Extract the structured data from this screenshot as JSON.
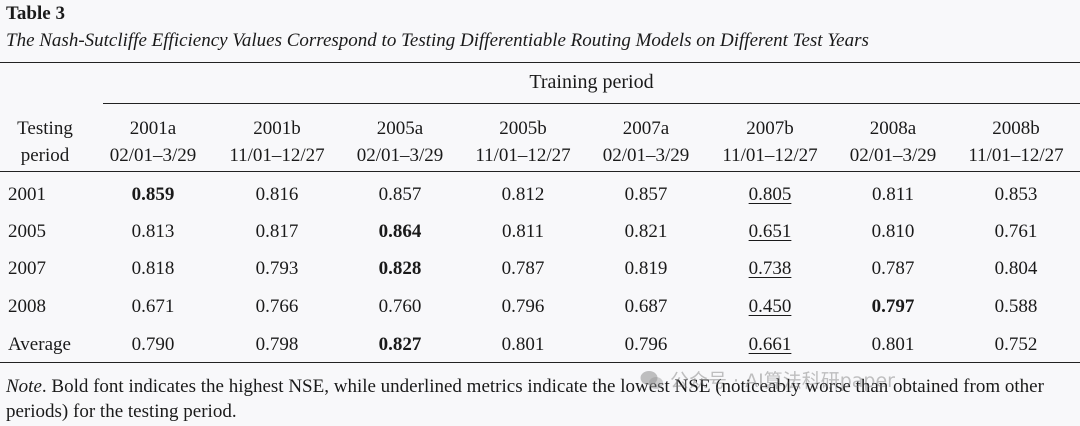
{
  "table_label": "Table 3",
  "caption": "The Nash-Sutcliffe Efficiency Values Correspond to Testing Differentiable Routing Models on Different Test Years",
  "group_header": "Training period",
  "row_header": {
    "line1": "Testing",
    "line2": "period"
  },
  "columns": [
    {
      "name": "2001a",
      "range": "02/01–3/29"
    },
    {
      "name": "2001b",
      "range": "11/01–12/27"
    },
    {
      "name": "2005a",
      "range": "02/01–3/29"
    },
    {
      "name": "2005b",
      "range": "11/01–12/27"
    },
    {
      "name": "2007a",
      "range": "02/01–3/29"
    },
    {
      "name": "2007b",
      "range": "11/01–12/27"
    },
    {
      "name": "2008a",
      "range": "02/01–3/29"
    },
    {
      "name": "2008b",
      "range": "11/01–12/27"
    }
  ],
  "rows": [
    {
      "label": "2001",
      "values": [
        "0.859",
        "0.816",
        "0.857",
        "0.812",
        "0.857",
        "0.805",
        "0.811",
        "0.853"
      ],
      "bold": [
        0
      ],
      "underline": [
        5
      ]
    },
    {
      "label": "2005",
      "values": [
        "0.813",
        "0.817",
        "0.864",
        "0.811",
        "0.821",
        "0.651",
        "0.810",
        "0.761"
      ],
      "bold": [
        2
      ],
      "underline": [
        5
      ]
    },
    {
      "label": "2007",
      "values": [
        "0.818",
        "0.793",
        "0.828",
        "0.787",
        "0.819",
        "0.738",
        "0.787",
        "0.804"
      ],
      "bold": [
        2
      ],
      "underline": [
        5
      ]
    },
    {
      "label": "2008",
      "values": [
        "0.671",
        "0.766",
        "0.760",
        "0.796",
        "0.687",
        "0.450",
        "0.797",
        "0.588"
      ],
      "bold": [
        6
      ],
      "underline": [
        5
      ]
    },
    {
      "label": "Average",
      "values": [
        "0.790",
        "0.798",
        "0.827",
        "0.801",
        "0.796",
        "0.661",
        "0.801",
        "0.752"
      ],
      "bold": [
        2
      ],
      "underline": [
        5
      ]
    }
  ],
  "note": {
    "label": "Note",
    "text": ". Bold font indicates the highest NSE, while underlined metrics indicate the lowest NSE (noticeably worse than obtained from other periods) for the testing period."
  },
  "watermark": {
    "text": "公众号 · AI算法科研paper",
    "icon": "wechat-icon"
  }
}
